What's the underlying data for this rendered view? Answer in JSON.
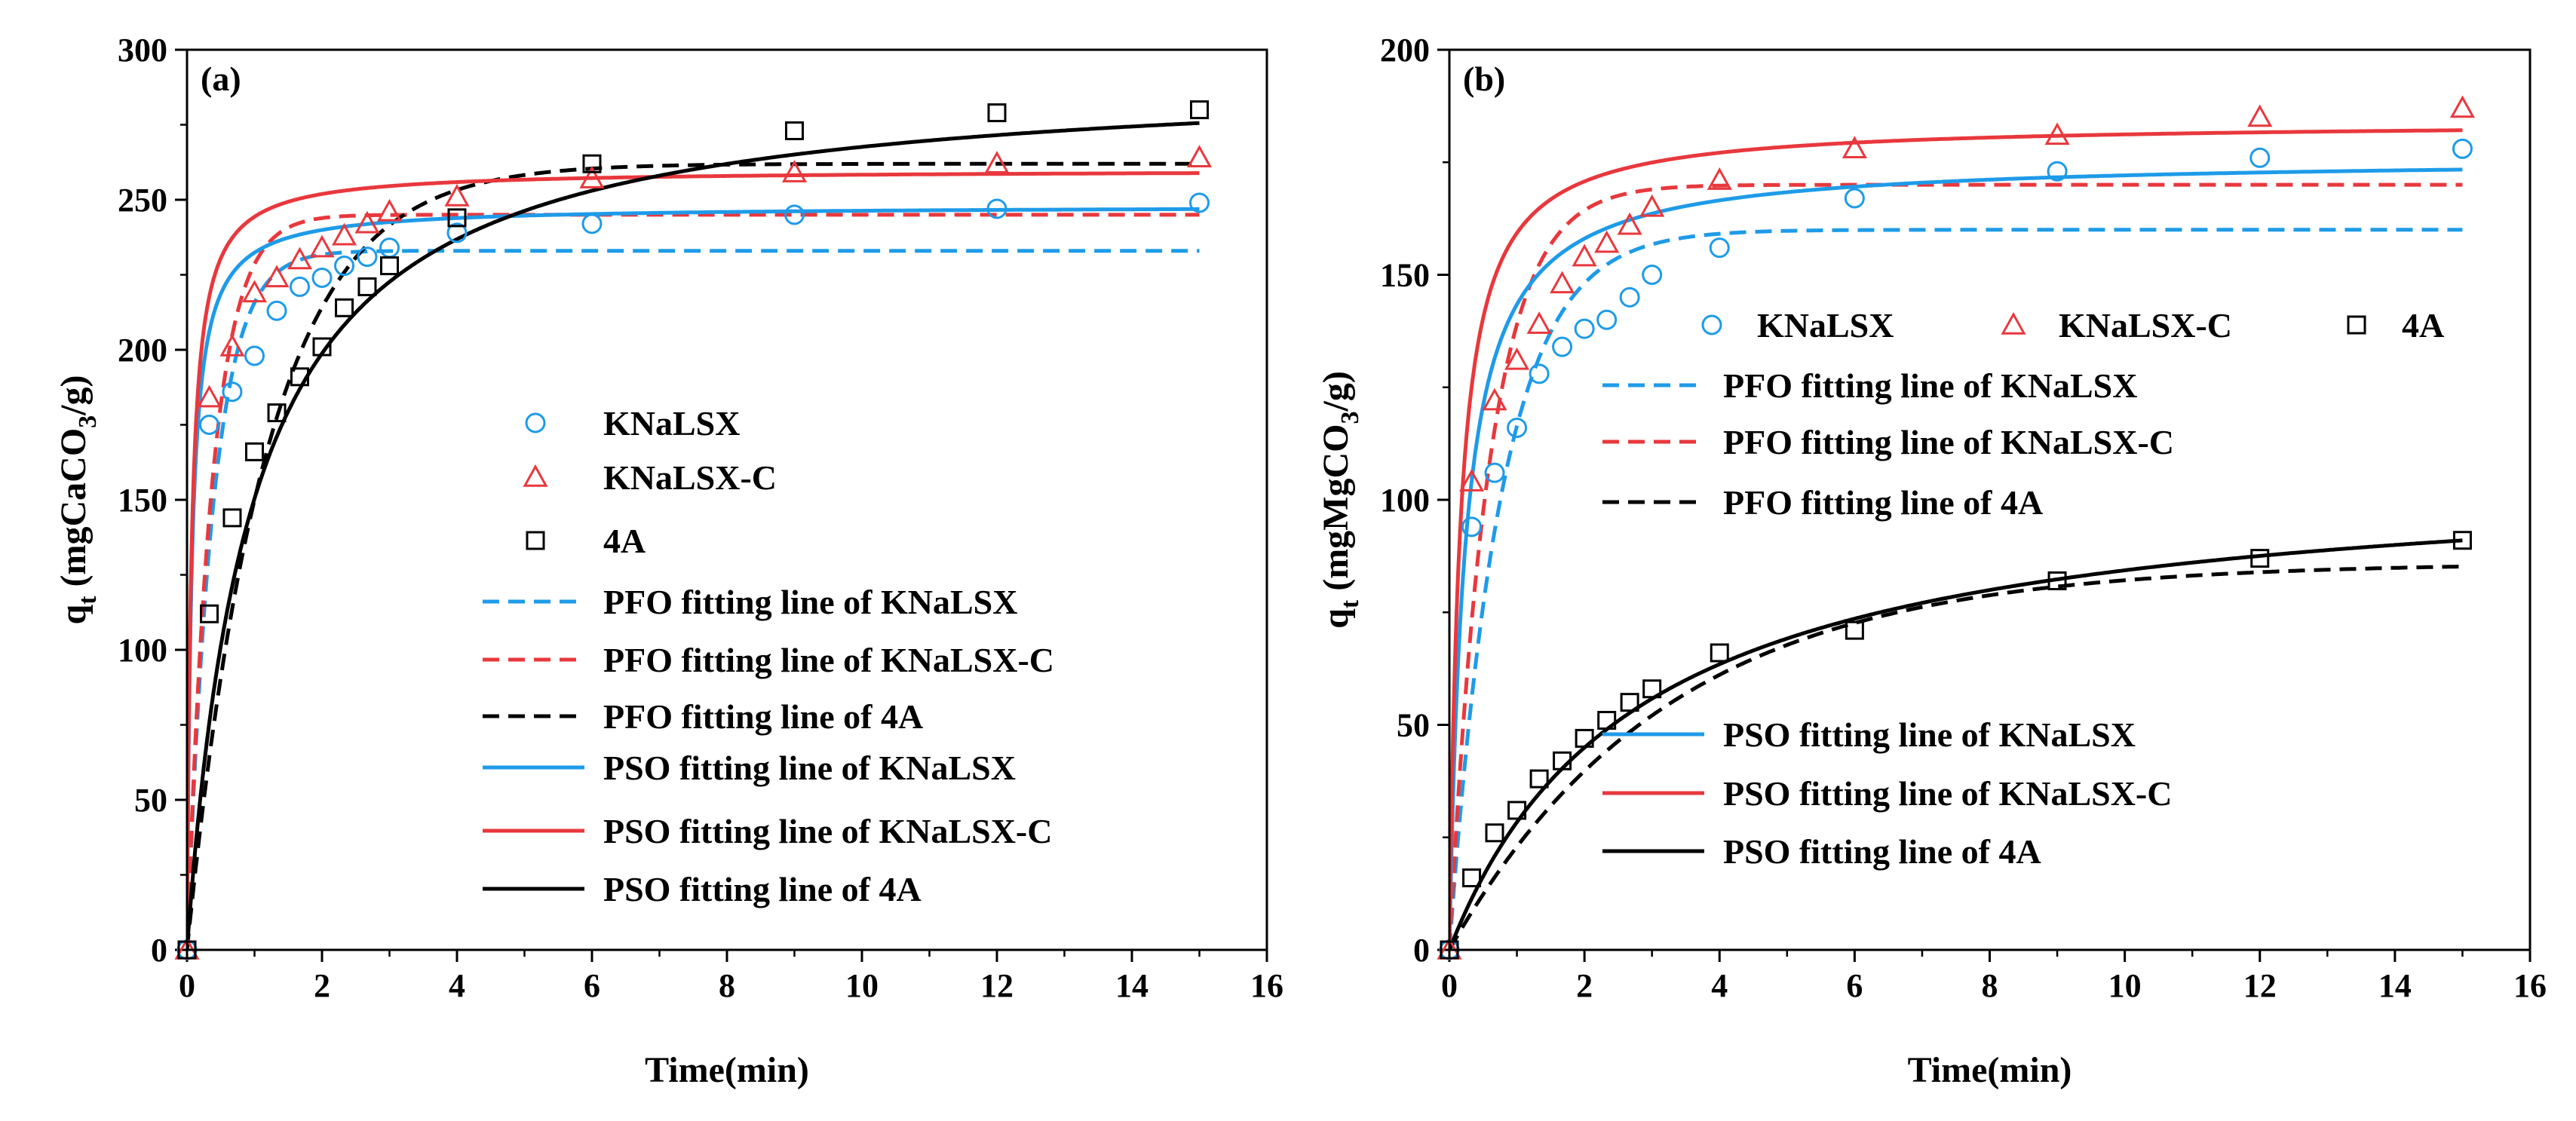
{
  "chart_data": [
    {
      "type": "scatter",
      "panel_label": "(a)",
      "xlabel": "Time(min)",
      "ylabel": {
        "main": "q",
        "sub": "t",
        "pre": " (mgCaCO",
        "unit_sub": "3",
        "post": "/g)"
      },
      "xlim": [
        0,
        16
      ],
      "ylim": [
        0,
        300
      ],
      "xticks": [
        0,
        2,
        4,
        6,
        8,
        10,
        12,
        14,
        16
      ],
      "yticks": [
        0,
        50,
        100,
        150,
        200,
        250,
        300
      ],
      "grid": false,
      "legend_position": "center-right",
      "x": [
        0,
        0.33,
        0.67,
        1,
        1.33,
        1.67,
        2,
        2.33,
        2.67,
        3,
        4,
        6,
        9,
        12,
        15
      ],
      "series": [
        {
          "name": "KNaLSX",
          "kind": "points",
          "marker": "circle",
          "color": "#1e9be8",
          "values": [
            0,
            175,
            186,
            198,
            213,
            221,
            224,
            228,
            231,
            234,
            239,
            242,
            245,
            247,
            249
          ]
        },
        {
          "name": "KNaLSX-C",
          "kind": "points",
          "marker": "triangle",
          "color": "#e8383d",
          "values": [
            0,
            184,
            201,
            219,
            224,
            230,
            234,
            238,
            242,
            246,
            251,
            257,
            259,
            262,
            264
          ]
        },
        {
          "name": "4A",
          "kind": "points",
          "marker": "square",
          "color": "#000000",
          "values": [
            0,
            112,
            144,
            166,
            179,
            191,
            201,
            214,
            221,
            228,
            244,
            262,
            273,
            279,
            280
          ]
        },
        {
          "name": "PFO fitting line of KNaLSX",
          "kind": "pfo",
          "dash": true,
          "color": "#1e9be8",
          "qe": 233,
          "k": 2.6
        },
        {
          "name": "PFO fitting line of KNaLSX-C",
          "kind": "pfo",
          "dash": true,
          "color": "#e8383d",
          "qe": 245,
          "k": 2.7
        },
        {
          "name": "PFO fitting line of 4A",
          "kind": "pfo",
          "dash": true,
          "color": "#000000",
          "qe": 262,
          "k": 0.85
        },
        {
          "name": "PSO fitting line of KNaLSX",
          "kind": "pso",
          "dash": false,
          "color": "#1e9be8",
          "qe": 248,
          "k": 0.06
        },
        {
          "name": "PSO fitting line of KNaLSX-C",
          "kind": "pso",
          "dash": false,
          "color": "#e8383d",
          "qe": 260,
          "k": 0.06
        },
        {
          "name": "PSO fitting line of 4A",
          "kind": "pso",
          "dash": false,
          "color": "#000000",
          "qe": 293,
          "k": 0.0036
        }
      ]
    },
    {
      "type": "scatter",
      "panel_label": "(b)",
      "xlabel": "Time(min)",
      "ylabel": {
        "main": "q",
        "sub": "t",
        "pre": " (mgMgCO",
        "unit_sub": "3",
        "post": "/g)"
      },
      "xlim": [
        0,
        16
      ],
      "ylim": [
        0,
        200
      ],
      "xticks": [
        0,
        2,
        4,
        6,
        8,
        10,
        12,
        14,
        16
      ],
      "yticks": [
        0,
        50,
        100,
        150,
        200
      ],
      "grid": false,
      "legend_position": "right",
      "x": [
        0,
        0.33,
        0.67,
        1,
        1.33,
        1.67,
        2,
        2.33,
        2.67,
        3,
        4,
        6,
        9,
        12,
        15
      ],
      "series": [
        {
          "name": "KNaLSX",
          "kind": "points",
          "marker": "circle",
          "color": "#1e9be8",
          "values": [
            0,
            94,
            106,
            116,
            128,
            134,
            138,
            140,
            145,
            150,
            156,
            167,
            173,
            176,
            178
          ]
        },
        {
          "name": "KNaLSX-C",
          "kind": "points",
          "marker": "triangle",
          "color": "#e8383d",
          "values": [
            0,
            104,
            122,
            131,
            139,
            148,
            154,
            157,
            161,
            165,
            171,
            178,
            181,
            185,
            187
          ]
        },
        {
          "name": "4A",
          "kind": "points",
          "marker": "square",
          "color": "#000000",
          "values": [
            0,
            16,
            26,
            31,
            38,
            42,
            47,
            51,
            55,
            58,
            66,
            71,
            82,
            87,
            91
          ]
        },
        {
          "name": "PFO fitting line of KNaLSX",
          "kind": "pfo",
          "dash": true,
          "color": "#1e9be8",
          "qe": 160,
          "k": 1.3
        },
        {
          "name": "PFO fitting line of KNaLSX-C",
          "kind": "pfo",
          "dash": true,
          "color": "#e8383d",
          "qe": 170,
          "k": 1.7
        },
        {
          "name": "PFO fitting line of 4A",
          "kind": "pfo",
          "dash": true,
          "color": "#000000",
          "qe": 86,
          "k": 0.31
        },
        {
          "name": "PSO fitting line of KNaLSX",
          "kind": "pso",
          "dash": false,
          "color": "#1e9be8",
          "qe": 176,
          "k": 0.025
        },
        {
          "name": "PSO fitting line of KNaLSX-C",
          "kind": "pso",
          "dash": false,
          "color": "#e8383d",
          "qe": 184,
          "k": 0.035
        },
        {
          "name": "PSO fitting line of 4A",
          "kind": "pso",
          "dash": false,
          "color": "#000000",
          "qe": 108,
          "k": 0.0033
        }
      ]
    }
  ]
}
